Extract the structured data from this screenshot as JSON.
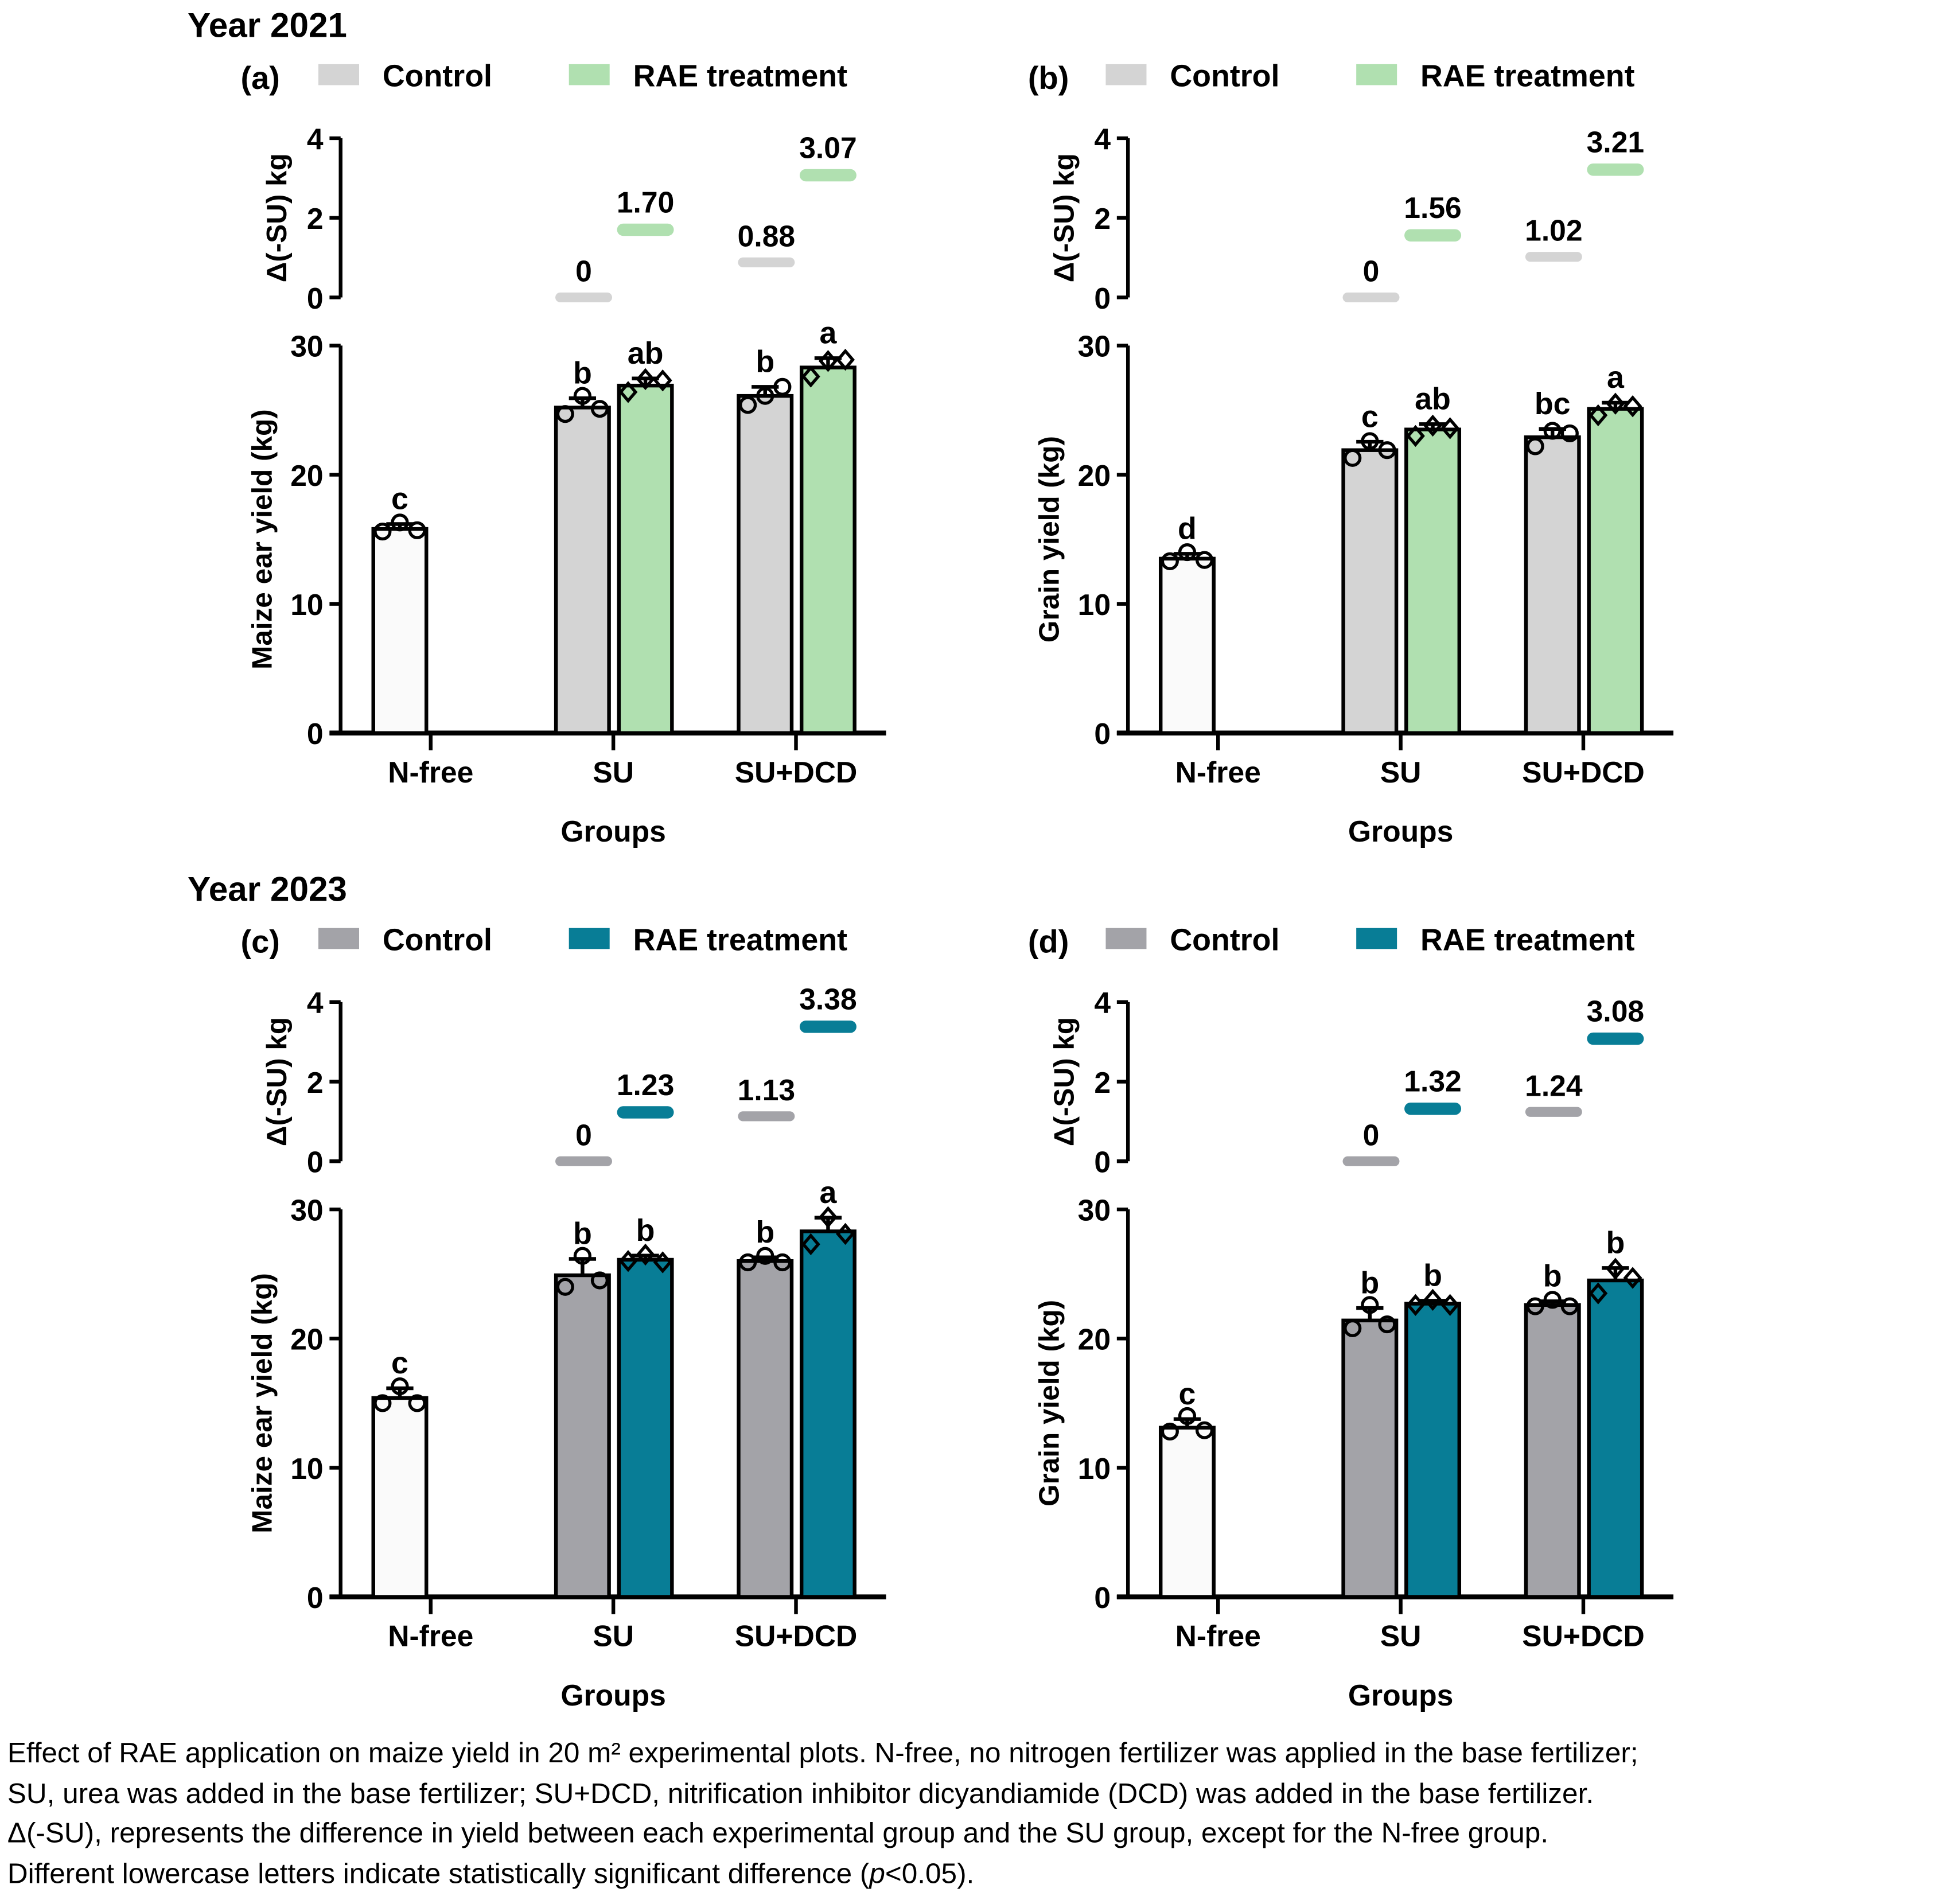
{
  "caption": {
    "line1": "Effect of RAE application on maize yield in 20 m² experimental plots. N-free, no nitrogen fertilizer was applied in the base fertilizer;",
    "line2": "SU, urea was added in the base fertilizer; SU+DCD, nitrification inhibitor dicyandiamide (DCD) was added in the base fertilizer.",
    "line3": "Δ(-SU), represents the difference in yield between each experimental group and the SU group, except for the N-free group.",
    "line4_pre": "Different lowercase letters indicate statistically significant difference (",
    "line4_italic": "p",
    "line4_post": "<0.05)."
  },
  "chart_data": [
    {
      "type": "bar",
      "panel": "(a)",
      "year_title": "Year 2021",
      "legend": [
        "Control",
        "RAE treatment"
      ],
      "legend_position": "top",
      "colors": {
        "nfree": "#fafafa",
        "control": "#d4d4d4",
        "rae": "#b0e0b0"
      },
      "categories": [
        "N-free",
        "SU",
        "SU+DCD"
      ],
      "xlabel": "Groups",
      "ylabel": "Maize ear yield (kg)",
      "ylim": [
        0,
        30
      ],
      "yticks": [
        0,
        10,
        20,
        30
      ],
      "series": [
        {
          "name": "N-free",
          "values": [
            15.8,
            null,
            null
          ],
          "letters": [
            "c",
            null,
            null
          ],
          "points": [
            [
              15.6,
              16.3,
              15.7
            ],
            null,
            null
          ],
          "marker": "circle"
        },
        {
          "name": "Control",
          "values": [
            null,
            25.2,
            26.1
          ],
          "letters": [
            null,
            "b",
            "b"
          ],
          "points": [
            null,
            [
              24.7,
              26.1,
              25.1
            ],
            [
              25.4,
              26.1,
              26.8
            ]
          ],
          "marker": "circle"
        },
        {
          "name": "RAE treatment",
          "values": [
            null,
            26.9,
            28.3
          ],
          "letters": [
            null,
            "ab",
            "a"
          ],
          "points": [
            null,
            [
              26.4,
              27.4,
              27.3
            ],
            [
              27.6,
              28.8,
              28.9
            ]
          ],
          "marker": "diamond"
        }
      ],
      "delta": {
        "ylabel": "Δ(-SU) kg",
        "ylim": [
          0,
          4
        ],
        "yticks": [
          0,
          2,
          4
        ],
        "control": [
          null,
          0,
          0.88
        ],
        "control_labels": [
          null,
          "0",
          "0.88"
        ],
        "rae": [
          null,
          1.7,
          3.07
        ],
        "rae_labels": [
          null,
          "1.70",
          "3.07"
        ]
      }
    },
    {
      "type": "bar",
      "panel": "(b)",
      "legend": [
        "Control",
        "RAE treatment"
      ],
      "legend_position": "top",
      "colors": {
        "nfree": "#fafafa",
        "control": "#d4d4d4",
        "rae": "#b0e0b0"
      },
      "categories": [
        "N-free",
        "SU",
        "SU+DCD"
      ],
      "xlabel": "Groups",
      "ylabel": "Grain yield (kg)",
      "ylim": [
        0,
        30
      ],
      "yticks": [
        0,
        10,
        20,
        30
      ],
      "series": [
        {
          "name": "N-free",
          "values": [
            13.5,
            null,
            null
          ],
          "letters": [
            "d",
            null,
            null
          ],
          "points": [
            [
              13.3,
              14.0,
              13.4
            ],
            null,
            null
          ],
          "marker": "circle"
        },
        {
          "name": "Control",
          "values": [
            null,
            21.9,
            22.9
          ],
          "letters": [
            null,
            "c",
            "bc"
          ],
          "points": [
            null,
            [
              21.3,
              22.6,
              21.9
            ],
            [
              22.2,
              23.4,
              23.2
            ]
          ],
          "marker": "circle"
        },
        {
          "name": "RAE treatment",
          "values": [
            null,
            23.5,
            25.1
          ],
          "letters": [
            null,
            "ab",
            "a"
          ],
          "points": [
            null,
            [
              23.0,
              23.8,
              23.6
            ],
            [
              24.6,
              25.5,
              25.3
            ]
          ],
          "marker": "diamond"
        }
      ],
      "delta": {
        "ylabel": "Δ(-SU) kg",
        "ylim": [
          0,
          4
        ],
        "yticks": [
          0,
          2,
          4
        ],
        "control": [
          null,
          0,
          1.02
        ],
        "control_labels": [
          null,
          "0",
          "1.02"
        ],
        "rae": [
          null,
          1.56,
          3.21
        ],
        "rae_labels": [
          null,
          "1.56",
          "3.21"
        ]
      }
    },
    {
      "type": "bar",
      "panel": "(c)",
      "year_title": "Year 2023",
      "legend": [
        "Control",
        "RAE treatment"
      ],
      "legend_position": "top",
      "colors": {
        "nfree": "#fafafa",
        "control": "#a3a3a8",
        "rae": "#087d96"
      },
      "categories": [
        "N-free",
        "SU",
        "SU+DCD"
      ],
      "xlabel": "Groups",
      "ylabel": "Maize ear yield (kg)",
      "ylim": [
        0,
        30
      ],
      "yticks": [
        0,
        10,
        20,
        30
      ],
      "series": [
        {
          "name": "N-free",
          "values": [
            15.4,
            null,
            null
          ],
          "letters": [
            "c",
            null,
            null
          ],
          "points": [
            [
              15.0,
              16.3,
              15.0
            ],
            null,
            null
          ],
          "marker": "circle"
        },
        {
          "name": "Control",
          "values": [
            null,
            24.9,
            26.0
          ],
          "letters": [
            null,
            "b",
            "b"
          ],
          "points": [
            null,
            [
              24.0,
              26.4,
              24.5
            ],
            [
              25.9,
              26.4,
              25.9
            ]
          ],
          "marker": "circle"
        },
        {
          "name": "RAE treatment",
          "values": [
            null,
            26.1,
            28.3
          ],
          "letters": [
            null,
            "b",
            "a"
          ],
          "points": [
            null,
            [
              26.0,
              26.5,
              25.9
            ],
            [
              27.3,
              29.4,
              28.1
            ]
          ],
          "marker": "diamond"
        }
      ],
      "delta": {
        "ylabel": "Δ(-SU) kg",
        "ylim": [
          0,
          4
        ],
        "yticks": [
          0,
          2,
          4
        ],
        "control": [
          null,
          0,
          1.13
        ],
        "control_labels": [
          null,
          "0",
          "1.13"
        ],
        "rae": [
          null,
          1.23,
          3.38
        ],
        "rae_labels": [
          null,
          "1.23",
          "3.38"
        ]
      }
    },
    {
      "type": "bar",
      "panel": "(d)",
      "legend": [
        "Control",
        "RAE treatment"
      ],
      "legend_position": "top",
      "colors": {
        "nfree": "#fafafa",
        "control": "#a3a3a8",
        "rae": "#087d96"
      },
      "categories": [
        "N-free",
        "SU",
        "SU+DCD"
      ],
      "xlabel": "Groups",
      "ylabel": "Grain yield (kg)",
      "ylim": [
        0,
        30
      ],
      "yticks": [
        0,
        10,
        20,
        30
      ],
      "series": [
        {
          "name": "N-free",
          "values": [
            13.1,
            null,
            null
          ],
          "letters": [
            "c",
            null,
            null
          ],
          "points": [
            [
              12.8,
              14.0,
              12.9
            ],
            null,
            null
          ],
          "marker": "circle"
        },
        {
          "name": "Control",
          "values": [
            null,
            21.4,
            22.6
          ],
          "letters": [
            null,
            "b",
            "b"
          ],
          "points": [
            null,
            [
              20.8,
              22.6,
              21.1
            ],
            [
              22.5,
              23.0,
              22.5
            ]
          ],
          "marker": "circle"
        },
        {
          "name": "RAE treatment",
          "values": [
            null,
            22.7,
            24.5
          ],
          "letters": [
            null,
            "b",
            "b"
          ],
          "points": [
            null,
            [
              22.6,
              23.0,
              22.6
            ],
            [
              23.5,
              25.4,
              24.7
            ]
          ],
          "marker": "diamond"
        }
      ],
      "delta": {
        "ylabel": "Δ(-SU) kg",
        "ylim": [
          0,
          4
        ],
        "yticks": [
          0,
          2,
          4
        ],
        "control": [
          null,
          0,
          1.24
        ],
        "control_labels": [
          null,
          "0",
          "1.24"
        ],
        "rae": [
          null,
          1.32,
          3.08
        ],
        "rae_labels": [
          null,
          "1.32",
          "3.08"
        ]
      }
    }
  ]
}
